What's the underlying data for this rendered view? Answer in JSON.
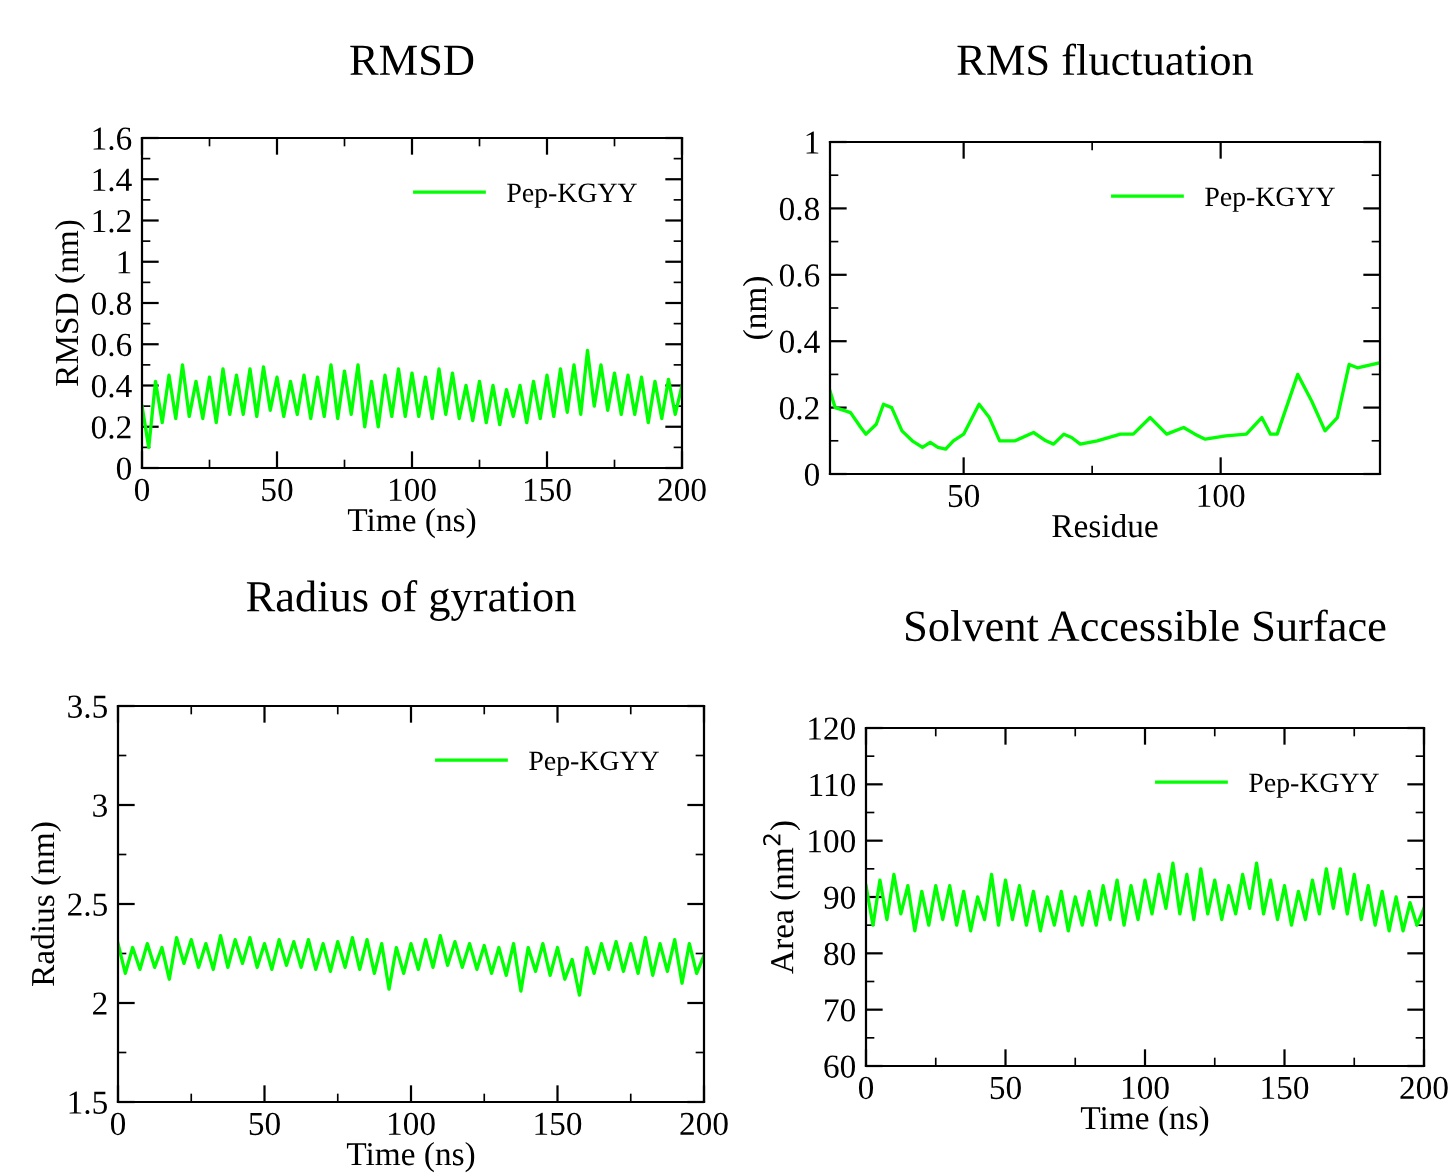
{
  "chart_data": [
    {
      "type": "line",
      "title": "RMSD",
      "xlabel": "Time (ns)",
      "ylabel": "RMSD (nm)",
      "xlim": [
        0,
        200
      ],
      "ylim": [
        0,
        1.6
      ],
      "xticks": [
        0,
        50,
        100,
        150,
        200
      ],
      "yticks": [
        0,
        0.2,
        0.4,
        0.6,
        0.8,
        1,
        1.2,
        1.4,
        1.6
      ],
      "legend": "top right",
      "grid": false,
      "marker": "none",
      "line_style": "solid",
      "x": [
        0,
        2.5,
        5,
        7.5,
        10,
        12.5,
        15,
        17.5,
        20,
        22.5,
        25,
        27.5,
        30,
        32.5,
        35,
        37.5,
        40,
        42.5,
        45,
        47.5,
        50,
        52.5,
        55,
        57.5,
        60,
        62.5,
        65,
        67.5,
        70,
        72.5,
        75,
        77.5,
        80,
        82.5,
        85,
        87.5,
        90,
        92.5,
        95,
        97.5,
        100,
        102.5,
        105,
        107.5,
        110,
        112.5,
        115,
        117.5,
        120,
        122.5,
        125,
        127.5,
        130,
        132.5,
        135,
        137.5,
        140,
        142.5,
        145,
        147.5,
        150,
        152.5,
        155,
        157.5,
        160,
        162.5,
        165,
        167.5,
        170,
        172.5,
        175,
        177.5,
        180,
        182.5,
        185,
        187.5,
        190,
        192.5,
        195,
        197.5,
        200
      ],
      "series": [
        {
          "name": "Pep-KGYY",
          "color": "#00ff00",
          "values": [
            0.3,
            0.1,
            0.42,
            0.22,
            0.45,
            0.24,
            0.5,
            0.25,
            0.42,
            0.24,
            0.44,
            0.22,
            0.48,
            0.26,
            0.45,
            0.26,
            0.48,
            0.25,
            0.49,
            0.28,
            0.44,
            0.25,
            0.42,
            0.26,
            0.45,
            0.24,
            0.44,
            0.25,
            0.5,
            0.24,
            0.47,
            0.26,
            0.5,
            0.2,
            0.42,
            0.2,
            0.45,
            0.25,
            0.48,
            0.25,
            0.46,
            0.25,
            0.44,
            0.24,
            0.48,
            0.26,
            0.46,
            0.24,
            0.4,
            0.23,
            0.42,
            0.22,
            0.4,
            0.21,
            0.38,
            0.25,
            0.4,
            0.22,
            0.42,
            0.24,
            0.45,
            0.25,
            0.48,
            0.27,
            0.5,
            0.26,
            0.57,
            0.3,
            0.5,
            0.28,
            0.46,
            0.26,
            0.45,
            0.26,
            0.44,
            0.22,
            0.42,
            0.24,
            0.43,
            0.26,
            0.4
          ]
        }
      ]
    },
    {
      "type": "line",
      "title": "RMS fluctuation",
      "xlabel": "Residue",
      "ylabel": "(nm)",
      "xlim": [
        24,
        131
      ],
      "ylim": [
        0,
        1
      ],
      "xticks": [
        50,
        100
      ],
      "yticks": [
        0,
        0.2,
        0.4,
        0.6,
        0.8,
        1
      ],
      "legend": "top right",
      "grid": false,
      "marker": "none",
      "line_style": "solid",
      "x": [
        24,
        25,
        27,
        28,
        30,
        31,
        33,
        34.4,
        36,
        38,
        40,
        42,
        43.5,
        45,
        46.5,
        48,
        50,
        53,
        55,
        57,
        60,
        63.6,
        66,
        67.5,
        69.5,
        71,
        72.7,
        76,
        80.5,
        83,
        86.3,
        89.5,
        92.8,
        95,
        97,
        101,
        105,
        108,
        109.7,
        111,
        115,
        117.7,
        120.3,
        122.7,
        125,
        126.6,
        131
      ],
      "series": [
        {
          "name": "Pep-KGYY",
          "color": "#00ff00",
          "values": [
            0.25,
            0.2,
            0.19,
            0.185,
            0.14,
            0.12,
            0.15,
            0.21,
            0.2,
            0.13,
            0.1,
            0.08,
            0.095,
            0.08,
            0.075,
            0.1,
            0.12,
            0.21,
            0.17,
            0.1,
            0.1,
            0.125,
            0.1,
            0.09,
            0.12,
            0.11,
            0.09,
            0.1,
            0.12,
            0.12,
            0.17,
            0.12,
            0.14,
            0.12,
            0.105,
            0.115,
            0.12,
            0.17,
            0.12,
            0.12,
            0.3,
            0.22,
            0.13,
            0.17,
            0.33,
            0.32,
            0.335
          ]
        }
      ]
    },
    {
      "type": "line",
      "title": "Radius of gyration",
      "xlabel": "Time (ns)",
      "ylabel": "Radius (nm)",
      "xlim": [
        0,
        200
      ],
      "ylim": [
        1.5,
        3.5
      ],
      "xticks": [
        0,
        50,
        100,
        150,
        200
      ],
      "yticks": [
        1.5,
        2,
        2.5,
        3,
        3.5
      ],
      "legend": "top right",
      "grid": false,
      "marker": "none",
      "line_style": "solid",
      "x": [
        0,
        2.5,
        5,
        7.5,
        10,
        12.5,
        15,
        17.5,
        20,
        22.5,
        25,
        27.5,
        30,
        32.5,
        35,
        37.5,
        40,
        42.5,
        45,
        47.5,
        50,
        52.5,
        55,
        57.5,
        60,
        62.5,
        65,
        67.5,
        70,
        72.5,
        75,
        77.5,
        80,
        82.5,
        85,
        87.5,
        90,
        92.5,
        95,
        97.5,
        100,
        102.5,
        105,
        107.5,
        110,
        112.5,
        115,
        117.5,
        120,
        122.5,
        125,
        127.5,
        130,
        132.5,
        135,
        137.5,
        140,
        142.5,
        145,
        147.5,
        150,
        152.5,
        155,
        157.5,
        160,
        162.5,
        165,
        167.5,
        170,
        172.5,
        175,
        177.5,
        180,
        182.5,
        185,
        187.5,
        190,
        192.5,
        195,
        197.5,
        200
      ],
      "series": [
        {
          "name": "Pep-KGYY",
          "color": "#00ff00",
          "values": [
            2.3,
            2.15,
            2.28,
            2.17,
            2.3,
            2.18,
            2.28,
            2.12,
            2.33,
            2.2,
            2.32,
            2.18,
            2.3,
            2.17,
            2.34,
            2.18,
            2.32,
            2.2,
            2.33,
            2.18,
            2.3,
            2.17,
            2.32,
            2.19,
            2.31,
            2.18,
            2.32,
            2.17,
            2.3,
            2.16,
            2.31,
            2.18,
            2.33,
            2.17,
            2.32,
            2.15,
            2.3,
            2.07,
            2.28,
            2.15,
            2.3,
            2.17,
            2.32,
            2.18,
            2.34,
            2.19,
            2.31,
            2.18,
            2.3,
            2.17,
            2.29,
            2.15,
            2.28,
            2.14,
            2.3,
            2.06,
            2.28,
            2.16,
            2.3,
            2.14,
            2.28,
            2.12,
            2.22,
            2.04,
            2.28,
            2.15,
            2.3,
            2.17,
            2.31,
            2.16,
            2.3,
            2.15,
            2.33,
            2.14,
            2.3,
            2.16,
            2.32,
            2.1,
            2.3,
            2.15,
            2.24
          ]
        }
      ]
    },
    {
      "type": "line",
      "title": "Solvent Accessible Surface",
      "xlabel": "Time (ns)",
      "ylabel": "Area (nm$^{2}$)",
      "xlim": [
        0,
        200
      ],
      "ylim": [
        60,
        120
      ],
      "xticks": [
        0,
        50,
        100,
        150,
        200
      ],
      "yticks": [
        60,
        70,
        80,
        90,
        100,
        110,
        120
      ],
      "legend": "top right",
      "grid": false,
      "marker": "none",
      "line_style": "solid",
      "x": [
        0,
        2.5,
        5,
        7.5,
        10,
        12.5,
        15,
        17.5,
        20,
        22.5,
        25,
        27.5,
        30,
        32.5,
        35,
        37.5,
        40,
        42.5,
        45,
        47.5,
        50,
        52.5,
        55,
        57.5,
        60,
        62.5,
        65,
        67.5,
        70,
        72.5,
        75,
        77.5,
        80,
        82.5,
        85,
        87.5,
        90,
        92.5,
        95,
        97.5,
        100,
        102.5,
        105,
        107.5,
        110,
        112.5,
        115,
        117.5,
        120,
        122.5,
        125,
        127.5,
        130,
        132.5,
        135,
        137.5,
        140,
        142.5,
        145,
        147.5,
        150,
        152.5,
        155,
        157.5,
        160,
        162.5,
        165,
        167.5,
        170,
        172.5,
        175,
        177.5,
        180,
        182.5,
        185,
        187.5,
        190,
        192.5,
        195,
        197.5,
        200
      ],
      "series": [
        {
          "name": "Pep-KGYY",
          "color": "#00ff00",
          "values": [
            92,
            85,
            93,
            86,
            94,
            87,
            92,
            84,
            91,
            85,
            92,
            86,
            92,
            85,
            91,
            84,
            90,
            86,
            94,
            85,
            93,
            86,
            92,
            85,
            91,
            84,
            90,
            85,
            91,
            84,
            90,
            85,
            91,
            85,
            92,
            86,
            93,
            85,
            92,
            86,
            93,
            87,
            94,
            88,
            96,
            87,
            94,
            86,
            95,
            87,
            93,
            86,
            92,
            87,
            94,
            88,
            96,
            87,
            93,
            86,
            92,
            85,
            91,
            86,
            93,
            87,
            95,
            88,
            95,
            87,
            94,
            86,
            92,
            85,
            91,
            84,
            90,
            84,
            89,
            85,
            88
          ]
        }
      ]
    }
  ]
}
